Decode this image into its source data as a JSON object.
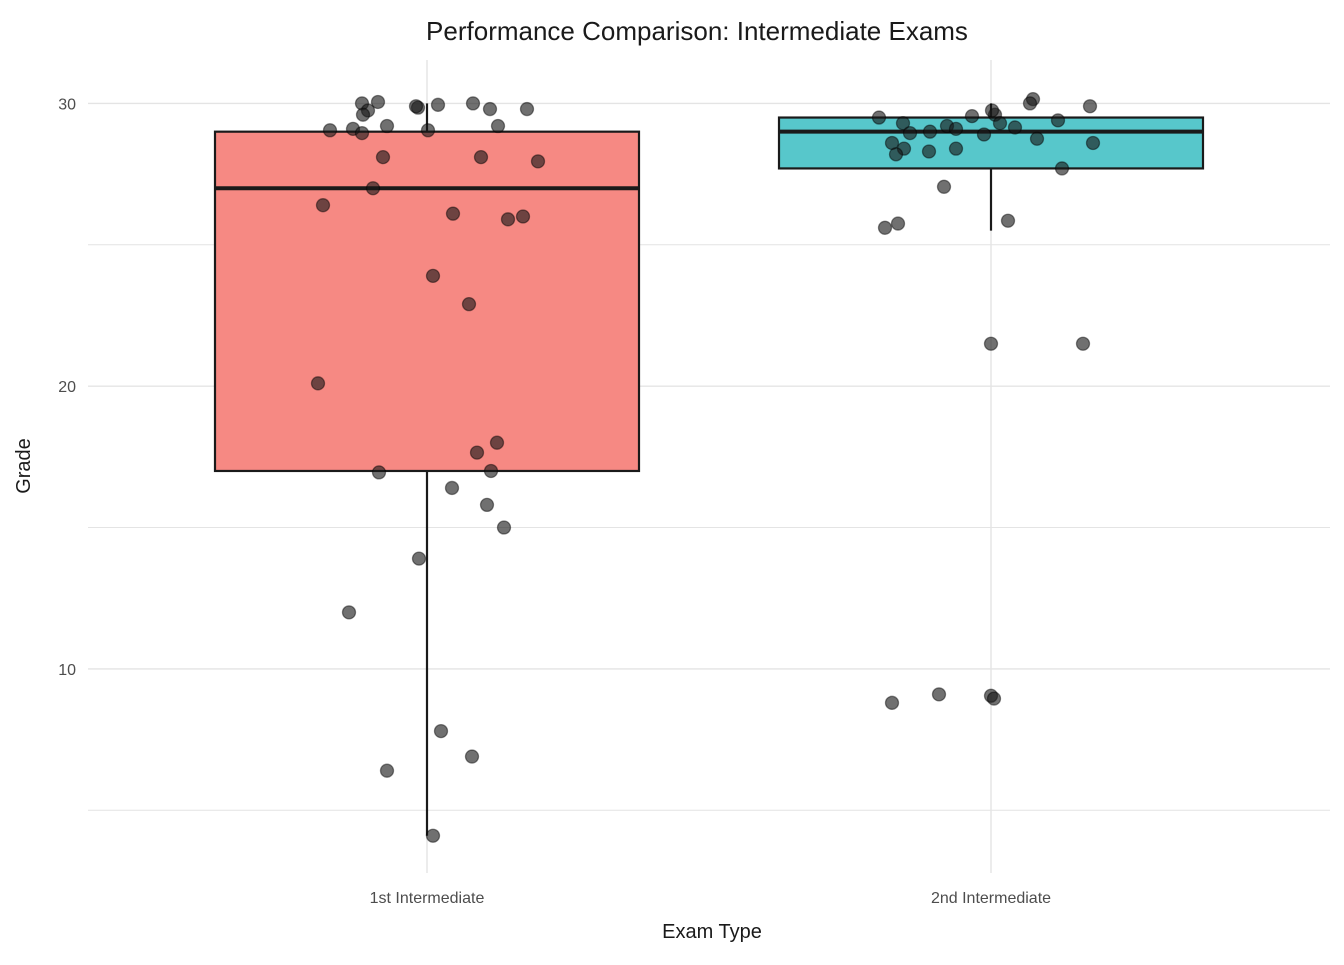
{
  "chart_data": {
    "type": "boxplot",
    "title": "Performance Comparison: Intermediate Exams",
    "xlabel": "Exam Type",
    "ylabel": "Grade",
    "categories": [
      "1st Intermediate",
      "2nd Intermediate"
    ],
    "y_ticks": [
      10,
      20,
      30
    ],
    "y_gridlines": [
      5,
      10,
      15,
      20,
      25,
      30
    ],
    "ylim": [
      2.8,
      31.5
    ],
    "grid": true,
    "legend": "none",
    "colors": {
      "grid": "#E4E4E4",
      "box_stroke": "#1A1A1A",
      "point_fill": "rgba(25,25,25,0.62)",
      "point_stroke": "rgba(0,0,0,0.45)",
      "tick_label": "#4D4D4D",
      "text": "#1A1A1A",
      "series_1_fill": "#F68983",
      "series_2_fill": "#57C7CB"
    },
    "series": [
      {
        "name": "1st Intermediate",
        "box_fill": "#F68983",
        "box": {
          "whisker_low": 4.1,
          "q1": 17.0,
          "median": 27.0,
          "q3": 29.0,
          "whisker_high": 30.0
        },
        "points_dx_grade": [
          [
            -65,
            30.0
          ],
          [
            -49,
            30.05
          ],
          [
            -59,
            29.75
          ],
          [
            -64,
            29.6
          ],
          [
            -74,
            29.1
          ],
          [
            -97,
            29.05
          ],
          [
            -65,
            28.95
          ],
          [
            -40,
            29.2
          ],
          [
            -9,
            29.85
          ],
          [
            -11,
            29.9
          ],
          [
            1,
            29.05
          ],
          [
            11,
            29.95
          ],
          [
            46,
            30.0
          ],
          [
            63,
            29.8
          ],
          [
            71,
            29.2
          ],
          [
            100,
            29.8
          ],
          [
            -44,
            28.1
          ],
          [
            54,
            28.1
          ],
          [
            111,
            27.95
          ],
          [
            -54,
            27.0
          ],
          [
            -104,
            26.4
          ],
          [
            26,
            26.1
          ],
          [
            81,
            25.9
          ],
          [
            96,
            26.0
          ],
          [
            6,
            23.9
          ],
          [
            42,
            22.9
          ],
          [
            -109,
            20.1
          ],
          [
            70,
            18.0
          ],
          [
            50,
            17.65
          ],
          [
            64,
            17.0
          ],
          [
            -48,
            16.95
          ],
          [
            25,
            16.4
          ],
          [
            60,
            15.8
          ],
          [
            77,
            15.0
          ],
          [
            -8,
            13.9
          ],
          [
            -78,
            12.0
          ],
          [
            14,
            7.8
          ],
          [
            45,
            6.9
          ],
          [
            -40,
            6.4
          ],
          [
            6,
            4.1
          ]
        ]
      },
      {
        "name": "2nd Intermediate",
        "box_fill": "#57C7CB",
        "box": {
          "whisker_low": 25.5,
          "q1": 27.7,
          "median": 29.0,
          "q3": 29.5,
          "whisker_high": 30.0
        },
        "points_dx_grade": [
          [
            -112,
            29.5
          ],
          [
            -88,
            29.3
          ],
          [
            -81,
            28.95
          ],
          [
            -99,
            28.6
          ],
          [
            -87,
            28.4
          ],
          [
            -95,
            28.2
          ],
          [
            -61,
            29.0
          ],
          [
            -62,
            28.3
          ],
          [
            -44,
            29.2
          ],
          [
            -35,
            29.1
          ],
          [
            -35,
            28.4
          ],
          [
            -19,
            29.55
          ],
          [
            -7,
            28.9
          ],
          [
            4,
            29.6
          ],
          [
            9,
            29.3
          ],
          [
            24,
            29.15
          ],
          [
            46,
            28.75
          ],
          [
            67,
            29.4
          ],
          [
            102,
            28.6
          ],
          [
            71,
            27.7
          ],
          [
            42,
            30.15
          ],
          [
            39,
            30.0
          ],
          [
            99,
            29.9
          ],
          [
            1,
            29.75
          ],
          [
            -47,
            27.05
          ],
          [
            17,
            25.85
          ],
          [
            -93,
            25.75
          ],
          [
            -106,
            25.6
          ],
          [
            0,
            21.5
          ],
          [
            92,
            21.5
          ],
          [
            -52,
            9.1
          ],
          [
            -99,
            8.8
          ],
          [
            0,
            9.05
          ],
          [
            3,
            8.95
          ]
        ]
      }
    ]
  }
}
